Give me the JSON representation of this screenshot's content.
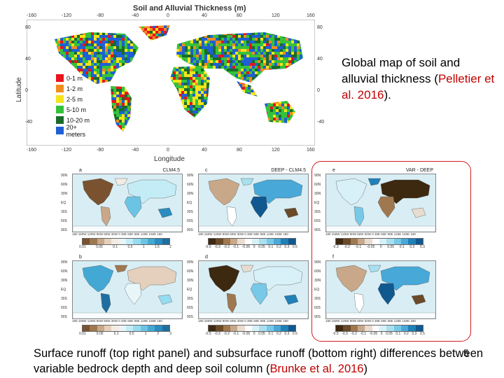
{
  "top_map": {
    "title": "Soil and Alluvial Thickness (m)",
    "x_axis_label": "Longitude",
    "y_axis_label": "Latitude",
    "lon_ticks": [
      "-160",
      "-120",
      "-80",
      "-40",
      "0",
      "40",
      "80",
      "120",
      "160"
    ],
    "lat_ticks_left": [
      "80",
      "40",
      "0",
      "-40"
    ],
    "lat_ticks_right": [
      "80",
      "40",
      "0",
      "-40"
    ],
    "legend": [
      {
        "label": "0-1 m",
        "color": "#e8141c"
      },
      {
        "label": "1-2 m",
        "color": "#f28c1e"
      },
      {
        "label": "2-5 m",
        "color": "#f5e41a"
      },
      {
        "label": "5-10 m",
        "color": "#35c23a"
      },
      {
        "label": "10-20 m",
        "color": "#1a6b2a"
      },
      {
        "label": "20+ meters",
        "color": "#1f5fd6"
      }
    ]
  },
  "caption": {
    "text_before": "Global map of soil and alluvial thickness (",
    "citation": "Pelletier et al. 2016",
    "text_after": ")."
  },
  "panels": [
    {
      "letter": "a",
      "title": "CLM4.5",
      "cbar": [
        "0.01",
        "0.05",
        "0.1",
        "0.5",
        "1",
        "1.5",
        "2"
      ],
      "scheme": "seq"
    },
    {
      "letter": "c",
      "title": "DEEP - CLM4.5",
      "cbar": [
        "-0.5",
        "-0.3",
        "-0.2",
        "-0.1",
        "-0.05",
        "0",
        "0.05",
        "0.1",
        "0.2",
        "0.3",
        "0.5"
      ],
      "scheme": "div"
    },
    {
      "letter": "e",
      "title": "VAR - DEEP",
      "cbar": [
        "-0.3",
        "-0.2",
        "-0.1",
        "-0.05",
        "0",
        "0.05",
        "0.1",
        "0.2",
        "0.3"
      ],
      "scheme": "div"
    },
    {
      "letter": "b",
      "title": "",
      "cbar": [
        "0.01",
        "0.05",
        "0.1",
        "0.5",
        "1",
        "2",
        "3"
      ],
      "scheme": "seq"
    },
    {
      "letter": "d",
      "title": "",
      "cbar": [
        "-0.5",
        "-0.3",
        "-0.2",
        "-0.1",
        "-0.05",
        "0",
        "0.05",
        "0.1",
        "0.2",
        "0.3",
        "0.5"
      ],
      "scheme": "div"
    },
    {
      "letter": "f",
      "title": "",
      "cbar": [
        "-0.5",
        "-0.3",
        "-0.2",
        "-0.1",
        "-0.05",
        "0",
        "0.05",
        "0.1",
        "0.2",
        "0.3",
        "0.5"
      ],
      "scheme": "div"
    }
  ],
  "panel_lat_ticks": [
    "90N",
    "60N",
    "30N",
    "EQ",
    "30S",
    "60S",
    "90S"
  ],
  "panel_lon_ticks": "180 150W 120W 90W 60W 30W 0 30E 60E 90E 120E 150E 180",
  "colors": {
    "seq": [
      "#7a5230",
      "#a07850",
      "#c8a888",
      "#e4d0bc",
      "#f2ece4",
      "#e8f6fa",
      "#c4ecf6",
      "#96dcf0",
      "#6cc4e4",
      "#44a8d4",
      "#2a8cc0",
      "#1f6ea0"
    ],
    "div": [
      "#3d2810",
      "#6b4a28",
      "#a07850",
      "#c8a888",
      "#e8dcd0",
      "#ffffff",
      "#d8f0f8",
      "#a8e0f0",
      "#78c8e8",
      "#48a8d8",
      "#2080b8",
      "#105890"
    ],
    "highlight_border": "#d02020",
    "citation": "#c00000"
  },
  "bottom_caption": {
    "text_before": "Surface runoff (top right panel) and subsurface runoff (bottom right) differences between variable bedrock depth and deep soil column (",
    "citation": "Brunke et al. 2016",
    "text_after": ")"
  },
  "slide_number": "5"
}
